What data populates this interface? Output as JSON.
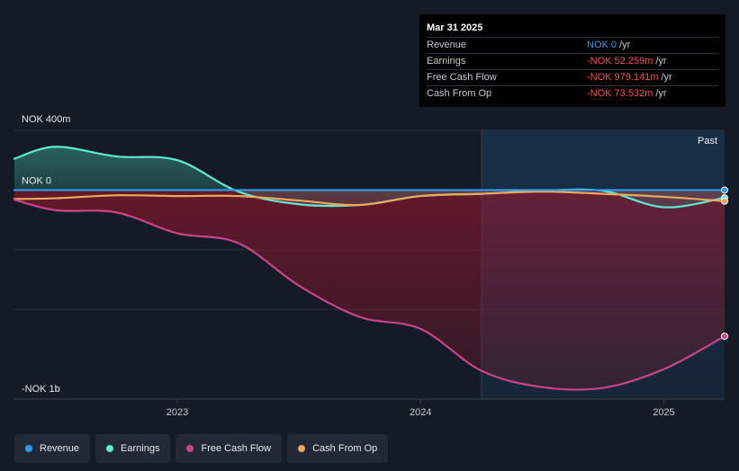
{
  "tooltip": {
    "date": "Mar 31 2025",
    "rows": [
      {
        "label": "Revenue",
        "value": "NOK 0",
        "unit": "/yr",
        "color": "#2d9bf0"
      },
      {
        "label": "Earnings",
        "value": "-NOK 52.259m",
        "unit": "/yr",
        "color": "#ff4d4d"
      },
      {
        "label": "Free Cash Flow",
        "value": "-NOK 979.141m",
        "unit": "/yr",
        "color": "#ff4d4d"
      },
      {
        "label": "Cash From Op",
        "value": "-NOK 73.532m",
        "unit": "/yr",
        "color": "#ff4d4d"
      }
    ]
  },
  "legend": [
    {
      "label": "Revenue",
      "color": "#2d9bf0"
    },
    {
      "label": "Earnings",
      "color": "#5ee8d2"
    },
    {
      "label": "Free Cash Flow",
      "color": "#c8458a"
    },
    {
      "label": "Cash From Op",
      "color": "#e8a85a"
    }
  ],
  "chart_data": {
    "type": "area",
    "y_tick_labels": {
      "top": "NOK 400m",
      "zero": "NOK 0",
      "bottom": "-NOK 1b"
    },
    "ylim": [
      -1400,
      400
    ],
    "xlim": [
      2022.33,
      2025.25
    ],
    "x_tick_labels": [
      "2023",
      "2024",
      "2025"
    ],
    "x_ticks": [
      2023,
      2024,
      2025
    ],
    "past_label": "Past",
    "past_start": 2024.25,
    "series": [
      {
        "name": "Revenue",
        "color": "#2d9bf0",
        "x": [
          2022.33,
          2025.25
        ],
        "y": [
          0,
          0
        ]
      },
      {
        "name": "Earnings",
        "color": "#5ee8d2",
        "x": [
          2022.33,
          2022.5,
          2022.75,
          2023.0,
          2023.25,
          2023.5,
          2023.75,
          2024.0,
          2024.25,
          2024.5,
          2024.75,
          2025.0,
          2025.25
        ],
        "y": [
          210,
          290,
          225,
          200,
          -10,
          -95,
          -100,
          -40,
          -25,
          -5,
          -5,
          -115,
          -52
        ]
      },
      {
        "name": "Free Cash Flow",
        "color": "#c8458a",
        "x": [
          2022.33,
          2022.5,
          2022.75,
          2023.0,
          2023.25,
          2023.5,
          2023.75,
          2024.0,
          2024.25,
          2024.5,
          2024.75,
          2025.0,
          2025.25
        ],
        "y": [
          -65,
          -135,
          -150,
          -290,
          -355,
          -640,
          -850,
          -930,
          -1210,
          -1320,
          -1325,
          -1200,
          -979
        ]
      },
      {
        "name": "Cash From Op",
        "color": "#e8a85a",
        "x": [
          2022.33,
          2022.5,
          2022.75,
          2023.0,
          2023.25,
          2023.5,
          2023.75,
          2024.0,
          2024.25,
          2024.5,
          2024.75,
          2025.0,
          2025.25
        ],
        "y": [
          -60,
          -55,
          -35,
          -40,
          -40,
          -70,
          -100,
          -40,
          -25,
          -10,
          -25,
          -45,
          -74
        ]
      }
    ]
  }
}
